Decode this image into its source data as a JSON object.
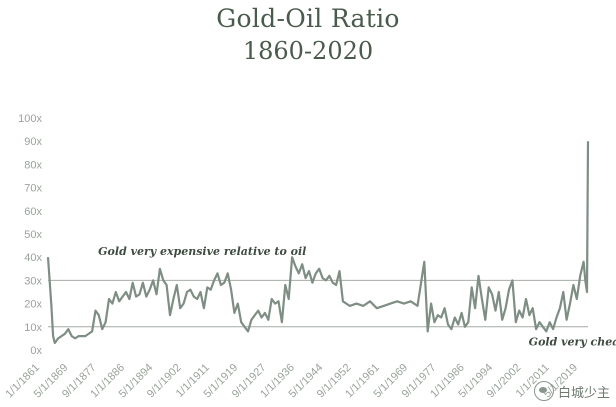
{
  "chart_data": {
    "type": "line",
    "title": "Gold-Oil Ratio",
    "subtitle": "1860-2020",
    "xlabel": "",
    "ylabel": "",
    "ylim": [
      0,
      100
    ],
    "yticks": [
      "0x",
      "10x",
      "20x",
      "30x",
      "40x",
      "50x",
      "60x",
      "70x",
      "80x",
      "90x",
      "100x"
    ],
    "xticks": [
      "1/1/1861",
      "5/1/1869",
      "9/1/1877",
      "1/1/1886",
      "5/1/1894",
      "9/1/1902",
      "1/1/1911",
      "5/1/1919",
      "9/1/1927",
      "1/1/1936",
      "5/1/1944",
      "9/1/1952",
      "1/1/1961",
      "5/1/1969",
      "9/1/1977",
      "1/1/1986",
      "5/1/1994",
      "9/1/2002",
      "1/1/2011",
      "5/1/2019"
    ],
    "x": [
      1861,
      1862,
      1862.5,
      1863,
      1864,
      1866,
      1867,
      1868,
      1869,
      1870,
      1872,
      1874,
      1875,
      1876,
      1877,
      1878,
      1879,
      1880,
      1881,
      1882,
      1883,
      1884,
      1885,
      1886,
      1887,
      1888,
      1889,
      1890,
      1891,
      1892,
      1893,
      1894,
      1895,
      1896,
      1897,
      1898,
      1899,
      1900,
      1901,
      1902,
      1903,
      1904,
      1905,
      1906,
      1907,
      1908,
      1909,
      1910,
      1911,
      1912,
      1913,
      1914,
      1915,
      1916,
      1917,
      1918,
      1919,
      1920,
      1921,
      1922,
      1923,
      1924,
      1925,
      1926,
      1927,
      1928,
      1929,
      1930,
      1931,
      1932,
      1933,
      1934,
      1935,
      1936,
      1937,
      1938,
      1939,
      1940,
      1941,
      1942,
      1943,
      1944,
      1945,
      1946,
      1947,
      1948,
      1950,
      1952,
      1954,
      1956,
      1958,
      1960,
      1962,
      1964,
      1966,
      1968,
      1970,
      1972,
      1973,
      1974,
      1975,
      1976,
      1977,
      1978,
      1979,
      1980,
      1981,
      1982,
      1983,
      1984,
      1985,
      1986,
      1987,
      1988,
      1989,
      1990,
      1991,
      1992,
      1993,
      1994,
      1995,
      1996,
      1997,
      1998,
      1999,
      2000,
      2001,
      2002,
      2003,
      2004,
      2005,
      2006,
      2007,
      2008,
      2009,
      2010,
      2011,
      2012,
      2013,
      2014,
      2015,
      2016,
      2017,
      2018,
      2019,
      2019.5,
      2020,
      2020.3
    ],
    "series": [
      {
        "values": [
          40,
          19,
          6,
          3,
          5,
          7,
          9,
          6,
          5,
          6,
          6,
          8,
          17,
          15,
          9,
          12,
          22,
          20,
          25,
          21,
          23,
          25,
          22,
          29,
          23,
          24,
          29,
          23,
          26,
          30,
          24,
          35,
          30,
          28,
          15,
          22,
          28,
          18,
          20,
          25,
          26,
          23,
          22,
          25,
          18,
          27,
          26,
          30,
          33,
          28,
          29,
          33,
          26,
          16,
          20,
          12,
          10,
          8,
          13,
          15,
          17,
          14,
          16,
          13,
          22,
          20,
          21,
          12,
          28,
          22,
          40,
          36,
          33,
          37,
          31,
          34,
          29,
          33,
          35,
          31,
          30,
          32,
          29,
          28,
          34,
          21,
          19,
          20,
          19,
          21,
          18,
          19,
          20,
          21,
          20,
          21,
          19,
          38,
          8,
          20,
          12,
          15,
          14,
          18,
          11,
          9,
          14,
          11,
          16,
          10,
          12,
          27,
          18,
          32,
          22,
          13,
          27,
          24,
          17,
          25,
          13,
          18,
          26,
          30,
          12,
          17,
          14,
          22,
          15,
          18,
          9,
          12,
          10,
          8,
          12,
          9,
          14,
          18,
          25,
          13,
          20,
          28,
          22,
          32,
          38,
          30,
          25,
          90
        ]
      }
    ],
    "reference_lines": [
      10,
      30
    ],
    "annotations": [
      {
        "text": "Gold very expensive relative to oil",
        "x": 1864,
        "y": 41
      },
      {
        "text": "Gold very cheap relative to oil",
        "x": 1991,
        "y": 2
      }
    ],
    "grid": false,
    "legend": "none",
    "colors": {
      "line": "#7e8e84",
      "ref": "#a6aca6",
      "text": "#3f4b41",
      "title": "#4a5a4c"
    }
  },
  "watermark": {
    "label": "白城少主",
    "icon": "wechat-icon"
  }
}
